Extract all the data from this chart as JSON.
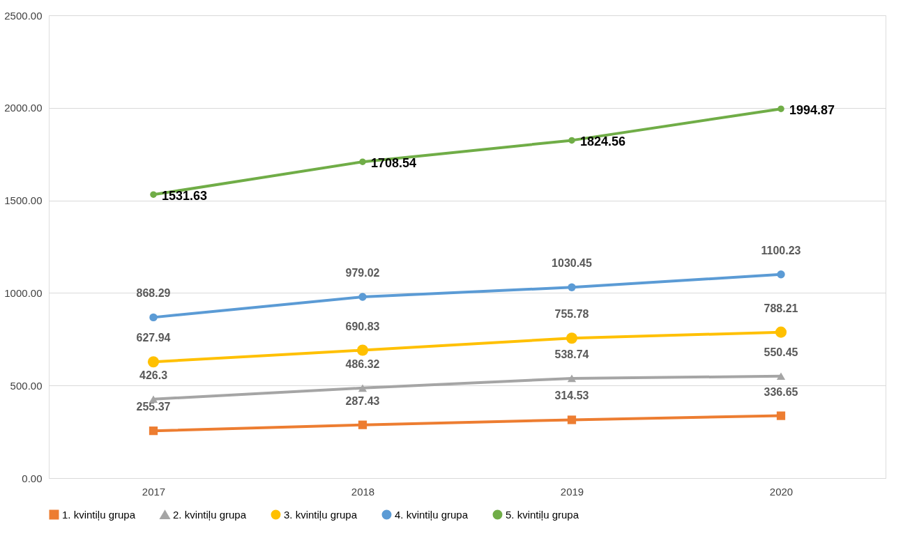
{
  "chart_data": {
    "type": "line",
    "categories": [
      "2017",
      "2018",
      "2019",
      "2020"
    ],
    "series": [
      {
        "name": "1. kvintiļu grupa",
        "color": "#ed7d31",
        "marker": "square",
        "values": [
          255.37,
          287.43,
          314.53,
          336.65
        ]
      },
      {
        "name": "2. kvintiļu grupa",
        "color": "#a5a5a5",
        "marker": "triangle",
        "values": [
          426.3,
          486.32,
          538.74,
          550.45
        ]
      },
      {
        "name": "3. kvintiļu grupa",
        "color": "#ffc000",
        "marker": "circle",
        "values": [
          627.94,
          690.83,
          755.78,
          788.21
        ]
      },
      {
        "name": "4. kvintiļu grupa",
        "color": "#5b9bd5",
        "marker": "circle",
        "values": [
          868.29,
          979.02,
          1030.45,
          1100.23
        ]
      },
      {
        "name": "5. kvintiļu grupa",
        "color": "#70ad47",
        "marker": "circle",
        "values": [
          1531.63,
          1708.54,
          1824.56,
          1994.87
        ]
      }
    ],
    "ylim": [
      0,
      2500
    ],
    "yticks": [
      {
        "value": 0,
        "label": "0.00"
      },
      {
        "value": 500,
        "label": "500.00"
      },
      {
        "value": 1000,
        "label": "1000.00"
      },
      {
        "value": 1500,
        "label": "1500.00"
      },
      {
        "value": 2000,
        "label": "2000.00"
      },
      {
        "value": 2500,
        "label": "2500.00"
      }
    ],
    "grid": "y",
    "legend": "bottom",
    "data_labels": true,
    "line_style": "solid"
  }
}
